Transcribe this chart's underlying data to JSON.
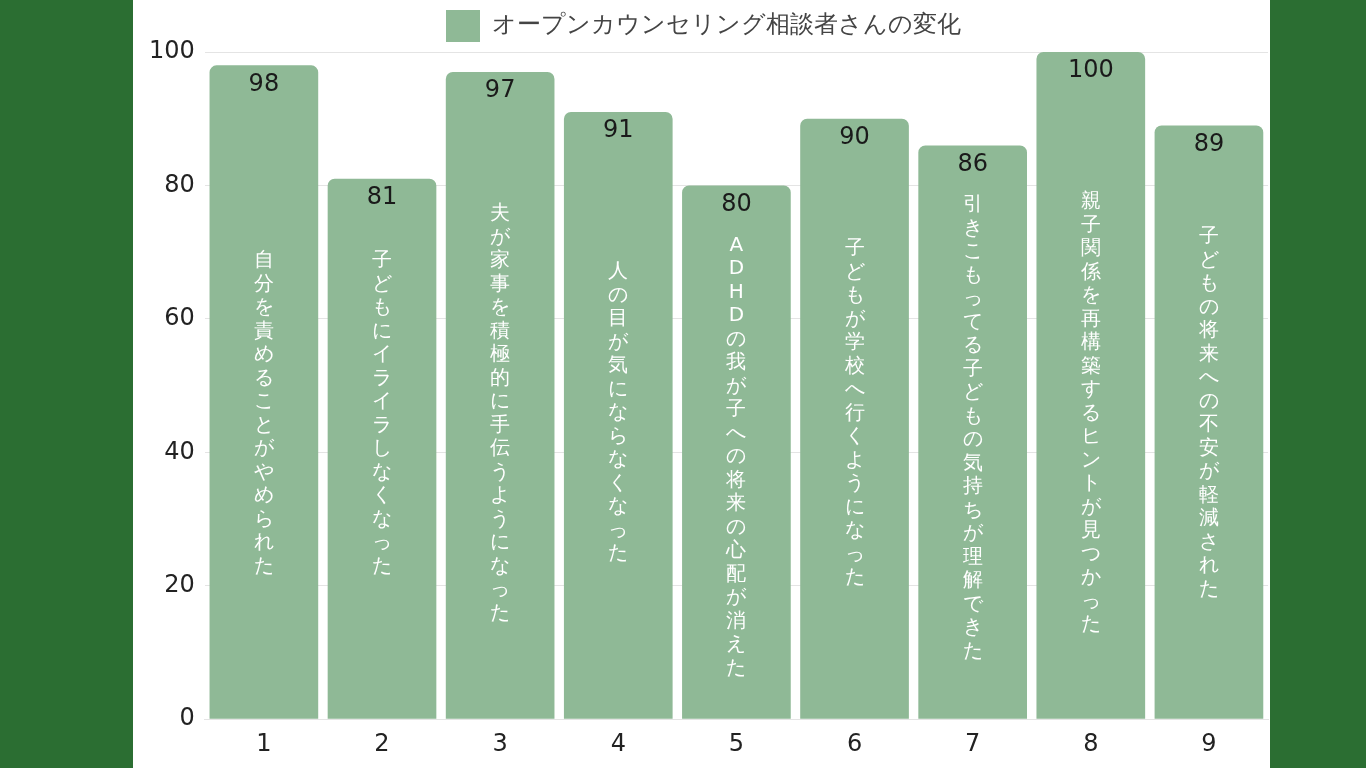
{
  "chart_data": {
    "type": "bar",
    "categories": [
      "1",
      "2",
      "3",
      "4",
      "5",
      "6",
      "7",
      "8",
      "9"
    ],
    "series": [
      {
        "name": "オープンカウンセリング相談者さんの変化",
        "color": "#8fb996",
        "values": [
          98,
          81,
          97,
          91,
          80,
          90,
          86,
          100,
          89
        ]
      }
    ],
    "ylim": [
      0,
      100
    ],
    "yticks": [
      0,
      20,
      40,
      60,
      80,
      100
    ],
    "grid": "y",
    "legend": "top",
    "data_labels": true,
    "annotations": [
      "自分を責めることがやめられた",
      "子どもにイライラしなくなった",
      "夫が家事を積極的に手伝うようになった",
      "人の目が気にならなくなった",
      "ADHDの我が子への将来の心配が消えた",
      "子どもが学校へ行くようになった",
      "引きこもってる子どもの気持ちが理解できた",
      "親子関係を再構築するヒントが見つかった",
      "子どもの将来への不安が軽減された"
    ]
  }
}
